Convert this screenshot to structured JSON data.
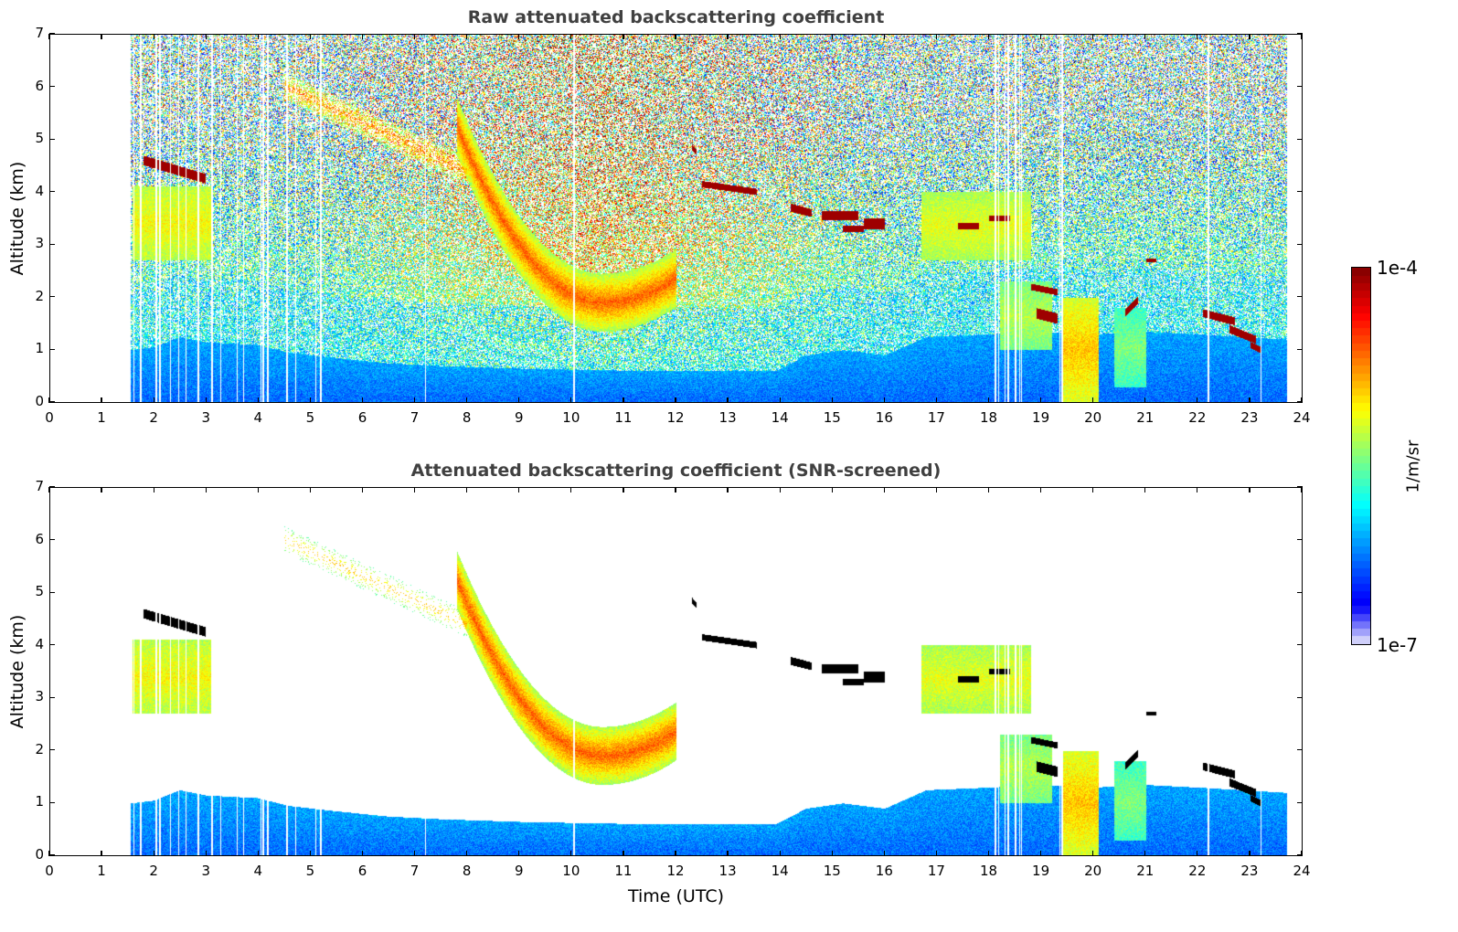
{
  "chart_data": [
    {
      "type": "heatmap",
      "title": "Raw attenuated backscattering coefficient",
      "xlabel": "",
      "ylabel": "Altitude (km)",
      "xlim": [
        0,
        24
      ],
      "ylim": [
        0,
        7
      ],
      "xticks": [
        "0",
        "1",
        "2",
        "3",
        "4",
        "5",
        "6",
        "7",
        "8",
        "9",
        "10",
        "11",
        "12",
        "13",
        "14",
        "15",
        "16",
        "17",
        "18",
        "19",
        "20",
        "21",
        "22",
        "23",
        "24"
      ],
      "yticks": [
        "0",
        "1",
        "2",
        "3",
        "4",
        "5",
        "6",
        "7"
      ],
      "screened": false
    },
    {
      "type": "heatmap",
      "title": "Attenuated backscattering coefficient (SNR-screened)",
      "xlabel": "Time (UTC)",
      "ylabel": "Altitude (km)",
      "xlim": [
        0,
        24
      ],
      "ylim": [
        0,
        7
      ],
      "xticks": [
        "0",
        "1",
        "2",
        "3",
        "4",
        "5",
        "6",
        "7",
        "8",
        "9",
        "10",
        "11",
        "12",
        "13",
        "14",
        "15",
        "16",
        "17",
        "18",
        "19",
        "20",
        "21",
        "22",
        "23",
        "24"
      ],
      "yticks": [
        "0",
        "1",
        "2",
        "3",
        "4",
        "5",
        "6",
        "7"
      ],
      "screened": true
    }
  ],
  "colorbar": {
    "max_label": "1e-4",
    "min_label": "1e-7",
    "units": "1/m/sr",
    "scale": "log",
    "range": [
      1e-07,
      0.0001
    ]
  },
  "measurements": {
    "time_start": 1.55,
    "time_end": 23.7,
    "gap_times": [
      1.62,
      1.75,
      2.05,
      2.12,
      2.32,
      2.48,
      2.62,
      2.85,
      3.12,
      3.28,
      3.6,
      3.72,
      4.05,
      4.1,
      4.18,
      4.55,
      4.72,
      5.1,
      5.2,
      7.2,
      10.05,
      18.12,
      18.18,
      18.3,
      18.36,
      18.5,
      18.58,
      18.62,
      19.35,
      19.4,
      22.2,
      23.2
    ],
    "boundary_layer_top": [
      [
        1.55,
        1.0
      ],
      [
        2.0,
        1.05
      ],
      [
        2.5,
        1.25
      ],
      [
        3.0,
        1.15
      ],
      [
        4.0,
        1.1
      ],
      [
        4.6,
        0.95
      ],
      [
        5.5,
        0.85
      ],
      [
        6.5,
        0.75
      ],
      [
        7.5,
        0.7
      ],
      [
        9.0,
        0.65
      ],
      [
        10.5,
        0.62
      ],
      [
        12.0,
        0.6
      ],
      [
        13.0,
        0.6
      ],
      [
        13.9,
        0.6
      ],
      [
        14.5,
        0.9
      ],
      [
        15.2,
        1.0
      ],
      [
        16.0,
        0.9
      ],
      [
        16.8,
        1.25
      ],
      [
        18.0,
        1.3
      ],
      [
        19.0,
        1.35
      ],
      [
        20.0,
        1.3
      ],
      [
        21.0,
        1.35
      ],
      [
        22.0,
        1.3
      ],
      [
        23.7,
        1.2
      ]
    ],
    "aerosol_layers": [
      {
        "t0": 1.6,
        "t1": 3.1,
        "z0": 2.7,
        "z1": 4.1,
        "strength": 0.62
      },
      {
        "t0": 7.8,
        "t1": 12.0,
        "arc": true,
        "strength": 0.78
      },
      {
        "t0": 4.5,
        "t1": 8.0,
        "z0": 4.7,
        "z1": 6.0,
        "strength": 0.7,
        "diagonal": true
      },
      {
        "t0": 16.7,
        "t1": 18.8,
        "z0": 2.7,
        "z1": 4.0,
        "strength": 0.6
      },
      {
        "t0": 19.4,
        "t1": 20.1,
        "z0": 0.0,
        "z1": 2.0,
        "strength": 0.68
      },
      {
        "t0": 18.2,
        "t1": 19.2,
        "z0": 1.0,
        "z1": 2.3,
        "strength": 0.55
      },
      {
        "t0": 20.4,
        "t1": 21.0,
        "z0": 0.3,
        "z1": 1.8,
        "strength": 0.5
      }
    ],
    "cloud_layers": [
      {
        "t0": 1.8,
        "t1": 3.0,
        "z_start": 4.6,
        "z_end": 4.25,
        "thick": 0.18
      },
      {
        "t0": 12.3,
        "t1": 12.4,
        "z_start": 4.85,
        "z_end": 4.75,
        "thick": 0.12
      },
      {
        "t0": 12.5,
        "t1": 13.55,
        "z_start": 4.15,
        "z_end": 4.0,
        "thick": 0.12
      },
      {
        "t0": 14.2,
        "t1": 14.6,
        "z_start": 3.7,
        "z_end": 3.6,
        "thick": 0.15
      },
      {
        "t0": 14.8,
        "t1": 15.5,
        "z_start": 3.55,
        "z_end": 3.55,
        "thick": 0.18
      },
      {
        "t0": 15.6,
        "t1": 16.0,
        "z_start": 3.4,
        "z_end": 3.4,
        "thick": 0.2
      },
      {
        "t0": 15.2,
        "t1": 15.6,
        "z_start": 3.3,
        "z_end": 3.3,
        "thick": 0.12
      },
      {
        "t0": 17.4,
        "t1": 17.8,
        "z_start": 3.35,
        "z_end": 3.35,
        "thick": 0.12
      },
      {
        "t0": 18.0,
        "t1": 18.4,
        "z_start": 3.5,
        "z_end": 3.5,
        "thick": 0.12
      },
      {
        "t0": 18.8,
        "t1": 19.3,
        "z_start": 2.2,
        "z_end": 2.1,
        "thick": 0.12
      },
      {
        "t0": 18.9,
        "t1": 19.3,
        "z_start": 1.7,
        "z_end": 1.6,
        "thick": 0.2
      },
      {
        "t0": 20.6,
        "t1": 20.85,
        "z_start": 1.7,
        "z_end": 1.95,
        "thick": 0.15
      },
      {
        "t0": 21.0,
        "t1": 21.2,
        "z_start": 2.7,
        "z_end": 2.7,
        "thick": 0.08
      },
      {
        "t0": 22.1,
        "t1": 22.7,
        "z_start": 1.7,
        "z_end": 1.55,
        "thick": 0.15
      },
      {
        "t0": 22.6,
        "t1": 23.1,
        "z_start": 1.4,
        "z_end": 1.2,
        "thick": 0.15
      },
      {
        "t0": 23.0,
        "t1": 23.2,
        "z_start": 1.1,
        "z_end": 1.0,
        "thick": 0.12
      }
    ]
  }
}
